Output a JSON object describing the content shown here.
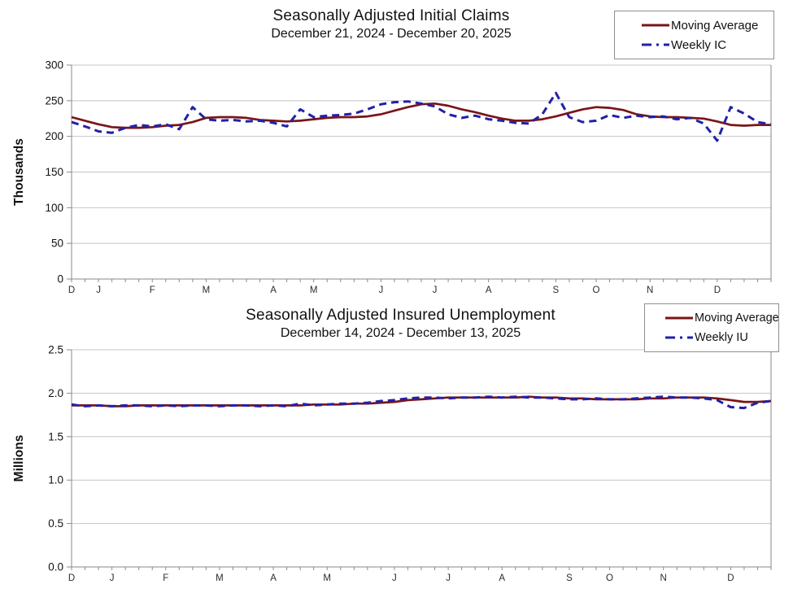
{
  "colors": {
    "moving_average": "#7a1517",
    "weekly": "#2121a8",
    "grid": "#c4c4c4",
    "axis": "#8a8a8a",
    "tick_label": "#111111",
    "month_label": "#2b2b2b"
  },
  "chart_data": [
    {
      "type": "line",
      "title": "Seasonally Adjusted Initial Claims",
      "subtitle": "December 21, 2024 - December 20, 2025",
      "ylabel": "Thousands",
      "xlabel": "",
      "ylim": [
        0,
        300
      ],
      "ytick_labels": [
        "0",
        "50",
        "100",
        "150",
        "200",
        "250",
        "300"
      ],
      "grid": true,
      "legend_position": "top-right",
      "month_labels": [
        {
          "label": "D",
          "week": 0
        },
        {
          "label": "J",
          "week": 2
        },
        {
          "label": "F",
          "week": 6
        },
        {
          "label": "M",
          "week": 10
        },
        {
          "label": "A",
          "week": 15
        },
        {
          "label": "M",
          "week": 18
        },
        {
          "label": "J",
          "week": 23
        },
        {
          "label": "J",
          "week": 27
        },
        {
          "label": "A",
          "week": 31
        },
        {
          "label": "S",
          "week": 36
        },
        {
          "label": "O",
          "week": 39
        },
        {
          "label": "N",
          "week": 43
        },
        {
          "label": "D",
          "week": 48
        }
      ],
      "series": [
        {
          "name": "Moving Average",
          "style": "solid",
          "color": "#7a1517",
          "values": [
            227,
            222,
            217,
            213,
            212,
            212,
            213,
            215,
            216,
            220,
            226,
            227,
            227,
            226,
            223,
            222,
            221,
            222,
            224,
            226,
            227,
            227,
            228,
            231,
            236,
            241,
            245,
            246,
            243,
            238,
            234,
            229,
            225,
            222,
            222,
            224,
            228,
            233,
            238,
            241,
            240,
            237,
            231,
            228,
            227,
            227,
            226,
            225,
            221,
            216,
            215,
            216,
            216
          ]
        },
        {
          "name": "Weekly IC",
          "style": "dashed",
          "color": "#2121a8",
          "values": [
            220,
            214,
            207,
            205,
            212,
            216,
            214,
            217,
            210,
            241,
            224,
            222,
            223,
            221,
            222,
            219,
            214,
            238,
            227,
            229,
            230,
            232,
            238,
            245,
            248,
            249,
            246,
            242,
            231,
            226,
            229,
            224,
            222,
            219,
            218,
            231,
            261,
            227,
            220,
            222,
            230,
            226,
            229,
            227,
            228,
            224,
            226,
            218,
            194,
            241,
            232,
            220,
            217
          ]
        }
      ]
    },
    {
      "type": "line",
      "title": "Seasonally Adjusted Insured Unemployment",
      "subtitle": "December 14, 2024 - December 13, 2025",
      "ylabel": "Millions",
      "xlabel": "",
      "ylim": [
        0,
        2.5
      ],
      "ytick_labels": [
        "0.0",
        "0.5",
        "1.0",
        "1.5",
        "2.0",
        "2.5"
      ],
      "grid": true,
      "legend_position": "top-right",
      "month_labels": [
        {
          "label": "D",
          "week": 0
        },
        {
          "label": "J",
          "week": 3
        },
        {
          "label": "F",
          "week": 7
        },
        {
          "label": "M",
          "week": 11
        },
        {
          "label": "A",
          "week": 15
        },
        {
          "label": "M",
          "week": 19
        },
        {
          "label": "J",
          "week": 24
        },
        {
          "label": "J",
          "week": 28
        },
        {
          "label": "A",
          "week": 32
        },
        {
          "label": "S",
          "week": 37
        },
        {
          "label": "O",
          "week": 40
        },
        {
          "label": "N",
          "week": 44
        },
        {
          "label": "D",
          "week": 49
        }
      ],
      "series": [
        {
          "name": "Moving Average",
          "style": "solid",
          "color": "#7a1517",
          "values": [
            1.86,
            1.86,
            1.86,
            1.85,
            1.85,
            1.86,
            1.86,
            1.86,
            1.86,
            1.86,
            1.86,
            1.86,
            1.86,
            1.86,
            1.86,
            1.86,
            1.86,
            1.86,
            1.87,
            1.87,
            1.87,
            1.88,
            1.88,
            1.89,
            1.9,
            1.92,
            1.93,
            1.94,
            1.95,
            1.95,
            1.95,
            1.95,
            1.95,
            1.95,
            1.96,
            1.95,
            1.95,
            1.94,
            1.94,
            1.93,
            1.93,
            1.93,
            1.93,
            1.94,
            1.94,
            1.95,
            1.95,
            1.95,
            1.94,
            1.92,
            1.9,
            1.9,
            1.91
          ]
        },
        {
          "name": "Weekly IU",
          "style": "dashed",
          "color": "#2121a8",
          "values": [
            1.87,
            1.85,
            1.86,
            1.85,
            1.86,
            1.86,
            1.85,
            1.86,
            1.85,
            1.86,
            1.86,
            1.85,
            1.86,
            1.86,
            1.85,
            1.86,
            1.85,
            1.88,
            1.86,
            1.87,
            1.88,
            1.88,
            1.89,
            1.91,
            1.92,
            1.94,
            1.95,
            1.95,
            1.94,
            1.95,
            1.95,
            1.96,
            1.95,
            1.96,
            1.95,
            1.95,
            1.94,
            1.93,
            1.93,
            1.94,
            1.93,
            1.93,
            1.94,
            1.95,
            1.96,
            1.95,
            1.95,
            1.94,
            1.92,
            1.84,
            1.83,
            1.89,
            1.91
          ]
        }
      ]
    }
  ]
}
